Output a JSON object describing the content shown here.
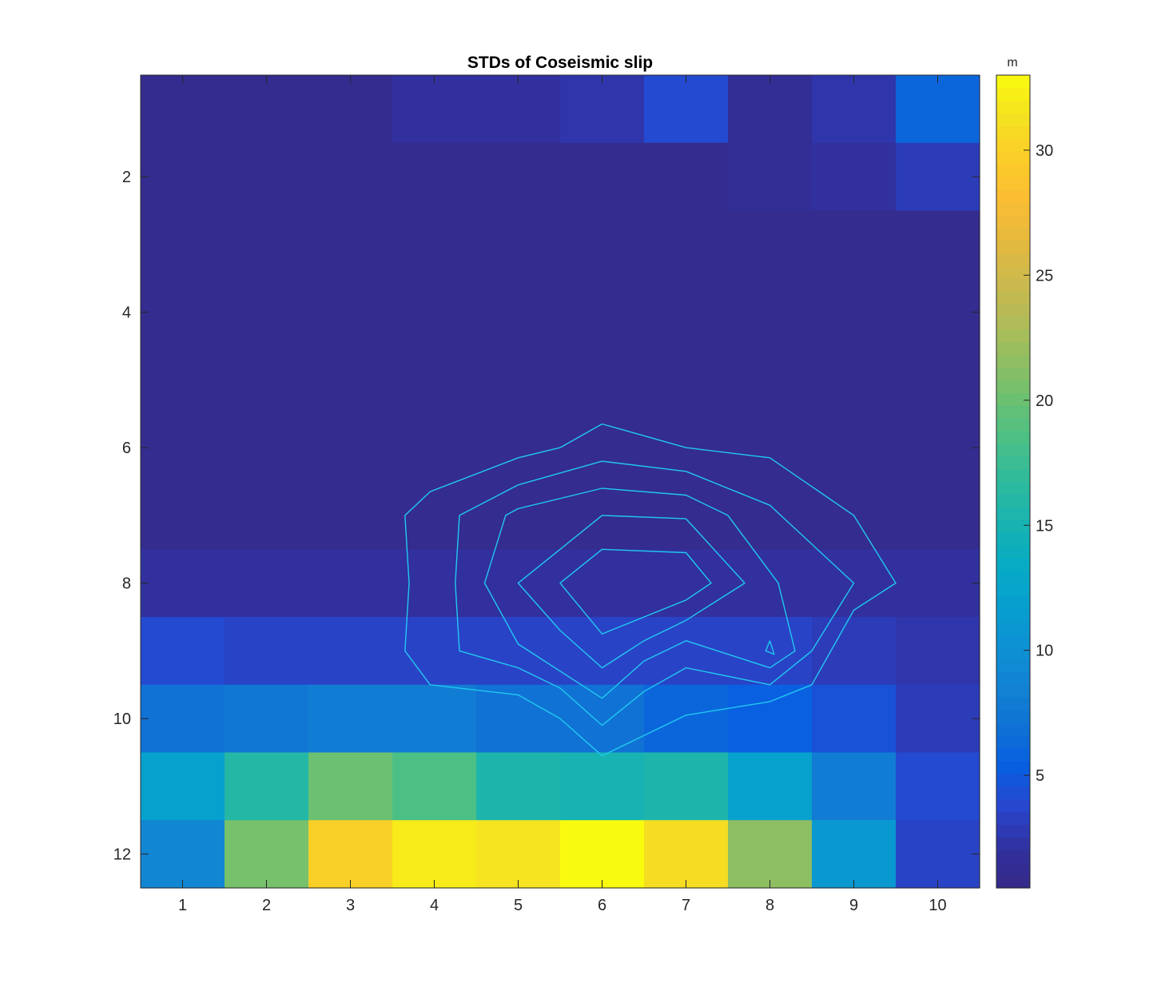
{
  "chart_data": {
    "type": "heatmap",
    "title": "STDs of Coseismic slip",
    "xlabel": "",
    "ylabel": "",
    "x_categories": [
      1,
      2,
      3,
      4,
      5,
      6,
      7,
      8,
      9,
      10
    ],
    "y_categories": [
      1,
      2,
      3,
      4,
      5,
      6,
      7,
      8,
      9,
      10,
      11,
      12
    ],
    "x_tick_labels": [
      "1",
      "2",
      "3",
      "4",
      "5",
      "6",
      "7",
      "8",
      "9",
      "10"
    ],
    "y_tick_labels": [
      "2",
      "4",
      "6",
      "8",
      "10",
      "12"
    ],
    "y_tick_values": [
      2,
      4,
      6,
      8,
      10,
      12
    ],
    "y_axis_direction": "reversed",
    "colormap": "parula",
    "values": [
      [
        1,
        1,
        1,
        2,
        2,
        2.5,
        4,
        1.5,
        2.5,
        6
      ],
      [
        1,
        1,
        1,
        1,
        1,
        1,
        1,
        1.5,
        2,
        3
      ],
      [
        1,
        1,
        1,
        1,
        1,
        1,
        1,
        1,
        1,
        1
      ],
      [
        1,
        1,
        1,
        1,
        1,
        1,
        1,
        1,
        1,
        1
      ],
      [
        1,
        1,
        1,
        1,
        1,
        1,
        1,
        1,
        1,
        1
      ],
      [
        1,
        1,
        1,
        1,
        1,
        1,
        1,
        1,
        1,
        1
      ],
      [
        1,
        1,
        1,
        1,
        1,
        1,
        1,
        1,
        1,
        1
      ],
      [
        2,
        2,
        2,
        2,
        2,
        2,
        2,
        2,
        2,
        2
      ],
      [
        4,
        3.5,
        3.5,
        3.5,
        3.5,
        3.5,
        3.5,
        3.5,
        3,
        2.5
      ],
      [
        7,
        7.5,
        8,
        8,
        7,
        7,
        6,
        5.5,
        4.5,
        3
      ],
      [
        12,
        16,
        20,
        18.5,
        15.5,
        15,
        15.5,
        12,
        8,
        4
      ],
      [
        9,
        20.5,
        30,
        32,
        31.5,
        33,
        31,
        21.5,
        11,
        3.5
      ]
    ],
    "colorbar": {
      "label": "m",
      "range": [
        0.5,
        33
      ],
      "ticks": [
        5,
        10,
        15,
        20,
        25,
        30
      ],
      "tick_labels": [
        "5",
        "10",
        "15",
        "20",
        "25",
        "30"
      ]
    },
    "contours": {
      "color": "#21c8f0",
      "lines": [
        [
          [
            6,
            5.65
          ],
          [
            5.5,
            6
          ],
          [
            5,
            6.15
          ],
          [
            3.95,
            6.65
          ],
          [
            3.65,
            7.0
          ],
          [
            3.7,
            8.0
          ],
          [
            3.65,
            9.0
          ],
          [
            3.95,
            9.5
          ],
          [
            5,
            9.65
          ],
          [
            5.5,
            10.0
          ],
          [
            6,
            10.55
          ],
          [
            7,
            9.95
          ],
          [
            8,
            9.75
          ],
          [
            8.5,
            9.5
          ],
          [
            9,
            8.4
          ],
          [
            9.5,
            8.0
          ],
          [
            9,
            7.0
          ],
          [
            8,
            6.15
          ],
          [
            7,
            6.0
          ],
          [
            6,
            5.65
          ]
        ],
        [
          [
            6,
            6.2
          ],
          [
            5,
            6.55
          ],
          [
            4.3,
            7.0
          ],
          [
            4.25,
            8.0
          ],
          [
            4.3,
            9.0
          ],
          [
            5,
            9.25
          ],
          [
            5.5,
            9.55
          ],
          [
            6,
            10.1
          ],
          [
            6.5,
            9.6
          ],
          [
            7,
            9.25
          ],
          [
            8,
            9.5
          ],
          [
            8.5,
            9.0
          ],
          [
            9,
            8.0
          ],
          [
            8,
            6.85
          ],
          [
            7,
            6.35
          ],
          [
            6,
            6.2
          ]
        ],
        [
          [
            6,
            6.6
          ],
          [
            5,
            6.9
          ],
          [
            4.85,
            7.0
          ],
          [
            4.6,
            8.0
          ],
          [
            5,
            8.9
          ],
          [
            6,
            9.7
          ],
          [
            6.5,
            9.15
          ],
          [
            7,
            8.85
          ],
          [
            8,
            9.25
          ],
          [
            8.3,
            9.0
          ],
          [
            8.1,
            8.0
          ],
          [
            7.5,
            7.0
          ],
          [
            7,
            6.7
          ],
          [
            6,
            6.6
          ]
        ],
        [
          [
            6,
            7.0
          ],
          [
            5.5,
            7.5
          ],
          [
            5,
            8.0
          ],
          [
            5.5,
            8.7
          ],
          [
            6,
            9.25
          ],
          [
            6.5,
            8.85
          ],
          [
            7,
            8.55
          ],
          [
            7.7,
            8.0
          ],
          [
            7,
            7.05
          ],
          [
            6,
            7.0
          ]
        ],
        [
          [
            6,
            7.5
          ],
          [
            5.5,
            8.0
          ],
          [
            6,
            8.75
          ],
          [
            7,
            8.25
          ],
          [
            7.3,
            8.0
          ],
          [
            7,
            7.55
          ],
          [
            6,
            7.5
          ]
        ],
        [
          [
            8,
            8.85
          ],
          [
            7.95,
            9.0
          ],
          [
            8.05,
            9.05
          ],
          [
            8,
            8.85
          ]
        ]
      ]
    }
  }
}
